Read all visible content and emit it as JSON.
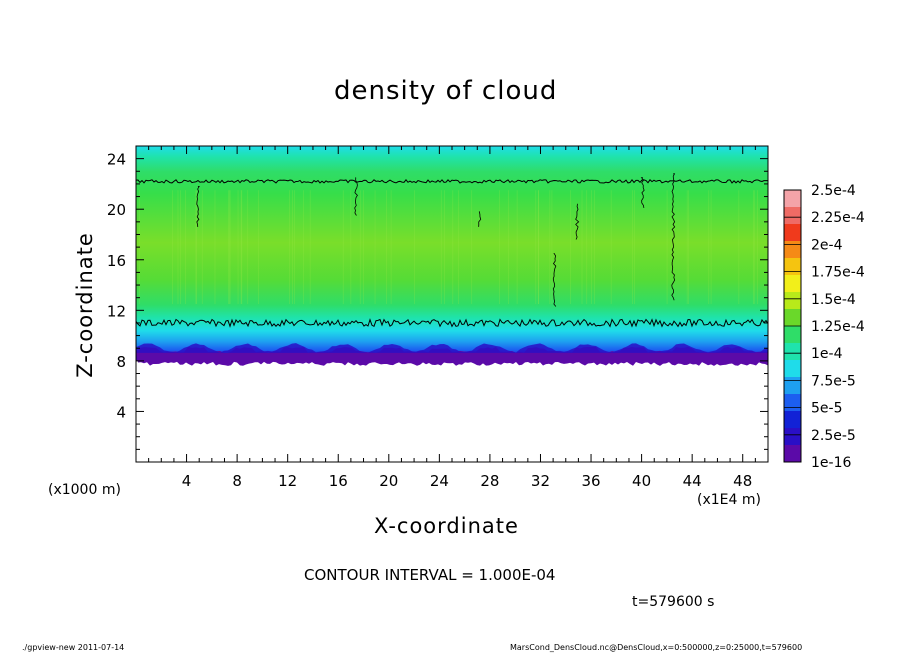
{
  "chart_data": {
    "type": "heatmap",
    "title": "density of cloud",
    "xlabel": "X-coordinate",
    "ylabel": "Z-coordinate",
    "x_unit_label": "(x1000 m)",
    "x_multiplier_label": "(x1E4 m)",
    "x_ticks": [
      4,
      8,
      12,
      16,
      20,
      24,
      28,
      32,
      36,
      40,
      44,
      48
    ],
    "y_ticks": [
      4,
      8,
      12,
      16,
      20,
      24
    ],
    "xlim": [
      0,
      50
    ],
    "ylim": [
      0,
      25
    ],
    "colorbar": {
      "labels": [
        "2.5e-4",
        "2.25e-4",
        "2e-4",
        "1.75e-4",
        "1.5e-4",
        "1.25e-4",
        "1e-4",
        "7.5e-5",
        "5e-5",
        "2.5e-5",
        "1e-16"
      ],
      "colors": [
        "#f4a3a8",
        "#ef6b65",
        "#f03a1c",
        "#f58a16",
        "#f5c410",
        "#f2ef1a",
        "#b8ea1a",
        "#6ad82a",
        "#2fdd68",
        "#1fe3ac",
        "#1fdcea",
        "#1ea0f0",
        "#1c5ef0",
        "#1222d6",
        "#2a0fc6",
        "#5b0aa8"
      ]
    },
    "description_fields": {
      "cloud_bottom_z": 8,
      "cloud_top_z": 25,
      "contour_levels_z": [
        11,
        22.2
      ]
    }
  },
  "labels": {
    "contour_interval": "CONTOUR INTERVAL = 1.000E-04",
    "time": "t=579600 s",
    "program": "./gpview-new  2011-07-14",
    "source": "MarsCond_DensCloud.nc@DensCloud,x=0:500000,z=0:25000,t=579600"
  }
}
